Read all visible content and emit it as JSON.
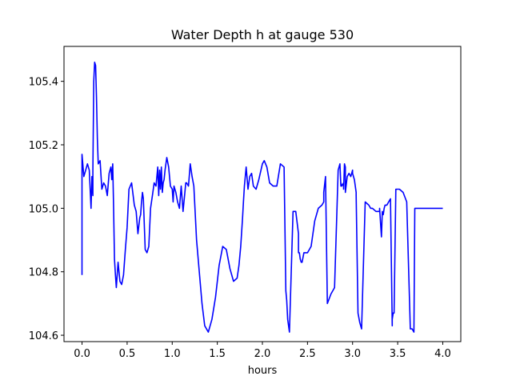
{
  "chart_data": {
    "type": "line",
    "title": "Water Depth h at gauge 530",
    "xlabel": "hours",
    "ylabel": "",
    "xlim": [
      -0.2,
      4.2
    ],
    "ylim": [
      104.58,
      105.51
    ],
    "xticks": [
      0.0,
      0.5,
      1.0,
      1.5,
      2.0,
      2.5,
      3.0,
      3.5,
      4.0
    ],
    "xtick_labels": [
      "0.0",
      "0.5",
      "1.0",
      "1.5",
      "2.0",
      "2.5",
      "3.0",
      "3.5",
      "4.0"
    ],
    "yticks": [
      104.6,
      104.8,
      105.0,
      105.2,
      105.4
    ],
    "ytick_labels": [
      "104.6",
      "104.8",
      "105.0",
      "105.2",
      "105.4"
    ],
    "grid": false,
    "series": [
      {
        "color": "#0000ff",
        "x": [
          0.0,
          0.0,
          0.02,
          0.04,
          0.06,
          0.08,
          0.1,
          0.11,
          0.12,
          0.12,
          0.13,
          0.14,
          0.15,
          0.16,
          0.17,
          0.18,
          0.2,
          0.22,
          0.24,
          0.26,
          0.28,
          0.3,
          0.32,
          0.33,
          0.34,
          0.35,
          0.36,
          0.37,
          0.38,
          0.4,
          0.42,
          0.44,
          0.46,
          0.48,
          0.5,
          0.52,
          0.55,
          0.58,
          0.6,
          0.62,
          0.64,
          0.65,
          0.66,
          0.67,
          0.68,
          0.7,
          0.72,
          0.74,
          0.76,
          0.78,
          0.8,
          0.82,
          0.84,
          0.85,
          0.86,
          0.87,
          0.88,
          0.89,
          0.9,
          0.91,
          0.92,
          0.94,
          0.96,
          0.98,
          1.0,
          1.01,
          1.02,
          1.04,
          1.06,
          1.08,
          1.1,
          1.12,
          1.14,
          1.15,
          1.16,
          1.18,
          1.2,
          1.22,
          1.24,
          1.27,
          1.3,
          1.33,
          1.36,
          1.4,
          1.44,
          1.48,
          1.52,
          1.56,
          1.6,
          1.64,
          1.68,
          1.72,
          1.74,
          1.76,
          1.78,
          1.79,
          1.8,
          1.82,
          1.84,
          1.86,
          1.88,
          1.9,
          1.93,
          1.96,
          2.0,
          2.02,
          2.05,
          2.08,
          2.12,
          2.16,
          2.2,
          2.24,
          2.26,
          2.27,
          2.28,
          2.3,
          2.34,
          2.37,
          2.4,
          2.4,
          2.41,
          2.42,
          2.43,
          2.44,
          2.46,
          2.5,
          2.54,
          2.58,
          2.62,
          2.66,
          2.68,
          2.68,
          2.7,
          2.72,
          2.76,
          2.8,
          2.84,
          2.86,
          2.87,
          2.87,
          2.88,
          2.9,
          2.9,
          2.91,
          2.92,
          2.92,
          2.94,
          2.96,
          2.98,
          3.0,
          3.0,
          3.02,
          3.04,
          3.04,
          3.06,
          3.08,
          3.1,
          3.14,
          3.18,
          3.2,
          3.22,
          3.26,
          3.3,
          3.3,
          3.32,
          3.33,
          3.34,
          3.34,
          3.35,
          3.36,
          3.38,
          3.4,
          3.42,
          3.44,
          3.44,
          3.45,
          3.46,
          3.48,
          3.52,
          3.56,
          3.6,
          3.64,
          3.66,
          3.68,
          3.69,
          3.7,
          3.7,
          3.72,
          3.74,
          3.76,
          3.8,
          3.84,
          3.88,
          3.92,
          3.95,
          3.95,
          3.98,
          4.0,
          4.0
        ]
      }
    ]
  }
}
